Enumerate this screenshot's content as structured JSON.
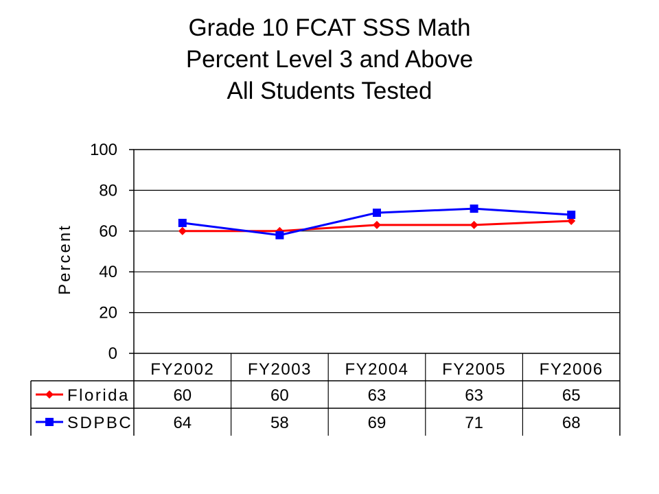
{
  "chart_data": {
    "type": "line",
    "title": [
      "Grade 10 FCAT SSS Math",
      "Percent Level 3 and Above",
      "All Students Tested"
    ],
    "xlabel": "",
    "ylabel": "Percent",
    "ylim": [
      0,
      100
    ],
    "yticks": [
      0,
      20,
      40,
      60,
      80,
      100
    ],
    "grid": true,
    "legend": "data-table",
    "categories": [
      "FY2002",
      "FY2003",
      "FY2004",
      "FY2005",
      "FY2006"
    ],
    "series": [
      {
        "name": "Florida",
        "color": "#ff0000",
        "marker": "diamond",
        "values": [
          60,
          60,
          63,
          63,
          65
        ]
      },
      {
        "name": "SDPBC",
        "color": "#0000ff",
        "marker": "square",
        "values": [
          64,
          58,
          69,
          71,
          68
        ]
      }
    ],
    "table_values": [
      [
        "60",
        "60",
        "63",
        "63",
        "65"
      ],
      [
        "64",
        "58",
        "69",
        "71",
        "68"
      ]
    ]
  }
}
